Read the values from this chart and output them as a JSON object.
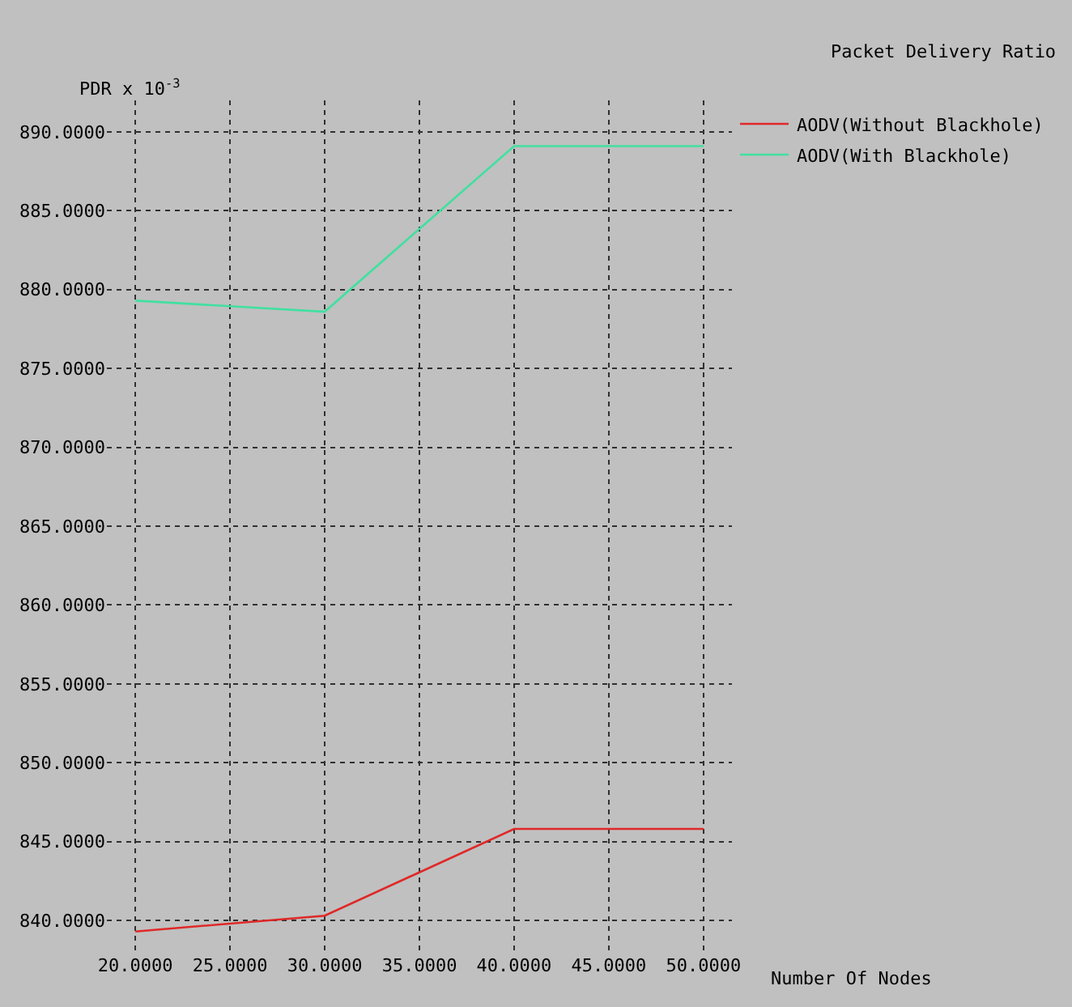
{
  "chart_data": {
    "type": "line",
    "title": "Packet Delivery Ratio",
    "xlabel": "Number Of Nodes",
    "ylabel": "PDR x 10$^{-3}$",
    "x": [
      20,
      30,
      40,
      50
    ],
    "series": [
      {
        "name": "AODV(Without Blackhole)",
        "color": "#e02828",
        "values": [
          839.3,
          840.3,
          845.8,
          845.8
        ]
      },
      {
        "name": "AODV(With Blackhole)",
        "color": "#40e0a0",
        "values": [
          879.3,
          878.6,
          889.1,
          889.1
        ]
      }
    ],
    "xlim": [
      18.5,
      51.5
    ],
    "ylim": [
      838,
      892
    ],
    "xticks": [
      {
        "value": 20,
        "label": "20.0000"
      },
      {
        "value": 25,
        "label": "25.0000"
      },
      {
        "value": 30,
        "label": "30.0000"
      },
      {
        "value": 35,
        "label": "35.0000"
      },
      {
        "value": 40,
        "label": "40.0000"
      },
      {
        "value": 45,
        "label": "45.0000"
      },
      {
        "value": 50,
        "label": "50.0000"
      }
    ],
    "yticks": [
      {
        "value": 840,
        "label": "840.0000"
      },
      {
        "value": 845,
        "label": "845.0000"
      },
      {
        "value": 850,
        "label": "850.0000"
      },
      {
        "value": 855,
        "label": "855.0000"
      },
      {
        "value": 860,
        "label": "860.0000"
      },
      {
        "value": 865,
        "label": "865.0000"
      },
      {
        "value": 870,
        "label": "870.0000"
      },
      {
        "value": 875,
        "label": "875.0000"
      },
      {
        "value": 880,
        "label": "880.0000"
      },
      {
        "value": 885,
        "label": "885.0000"
      },
      {
        "value": 890,
        "label": "890.0000"
      }
    ],
    "grid": true,
    "legend": "top right",
    "marker": "none",
    "line_style": "solid"
  }
}
